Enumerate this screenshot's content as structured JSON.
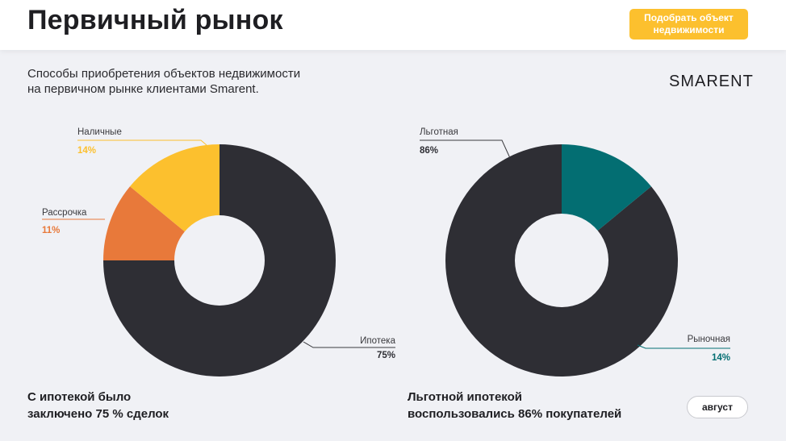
{
  "header": {
    "title": "Первичный рынок",
    "cta_label": "Подобрать объект\nнедвижимости"
  },
  "subtitle": "Способы приобретения объектов недвижимости\nна первичном рынке клиентами Smarent.",
  "brand": "SMARENT",
  "chart_data": [
    {
      "type": "pie",
      "categories": [
        "Ипотека",
        "Рассрочка",
        "Наличные"
      ],
      "values": [
        75,
        11,
        14
      ],
      "value_labels": [
        "75%",
        "11%",
        "14%"
      ],
      "colors": [
        "#2e2e34",
        "#e8793a",
        "#fcc02e"
      ],
      "donut": true
    },
    {
      "type": "pie",
      "categories": [
        "Льготная",
        "Рыночная"
      ],
      "values": [
        86,
        14
      ],
      "value_labels": [
        "86%",
        "14%"
      ],
      "colors": [
        "#2e2e34",
        "#036e72"
      ],
      "donut": true
    }
  ],
  "captions": {
    "left": "С ипотекой было\nзаключено 75 % сделок",
    "right": "Льготной ипотекой\nвоспользовались 86% покупателей"
  },
  "month_button": "август"
}
